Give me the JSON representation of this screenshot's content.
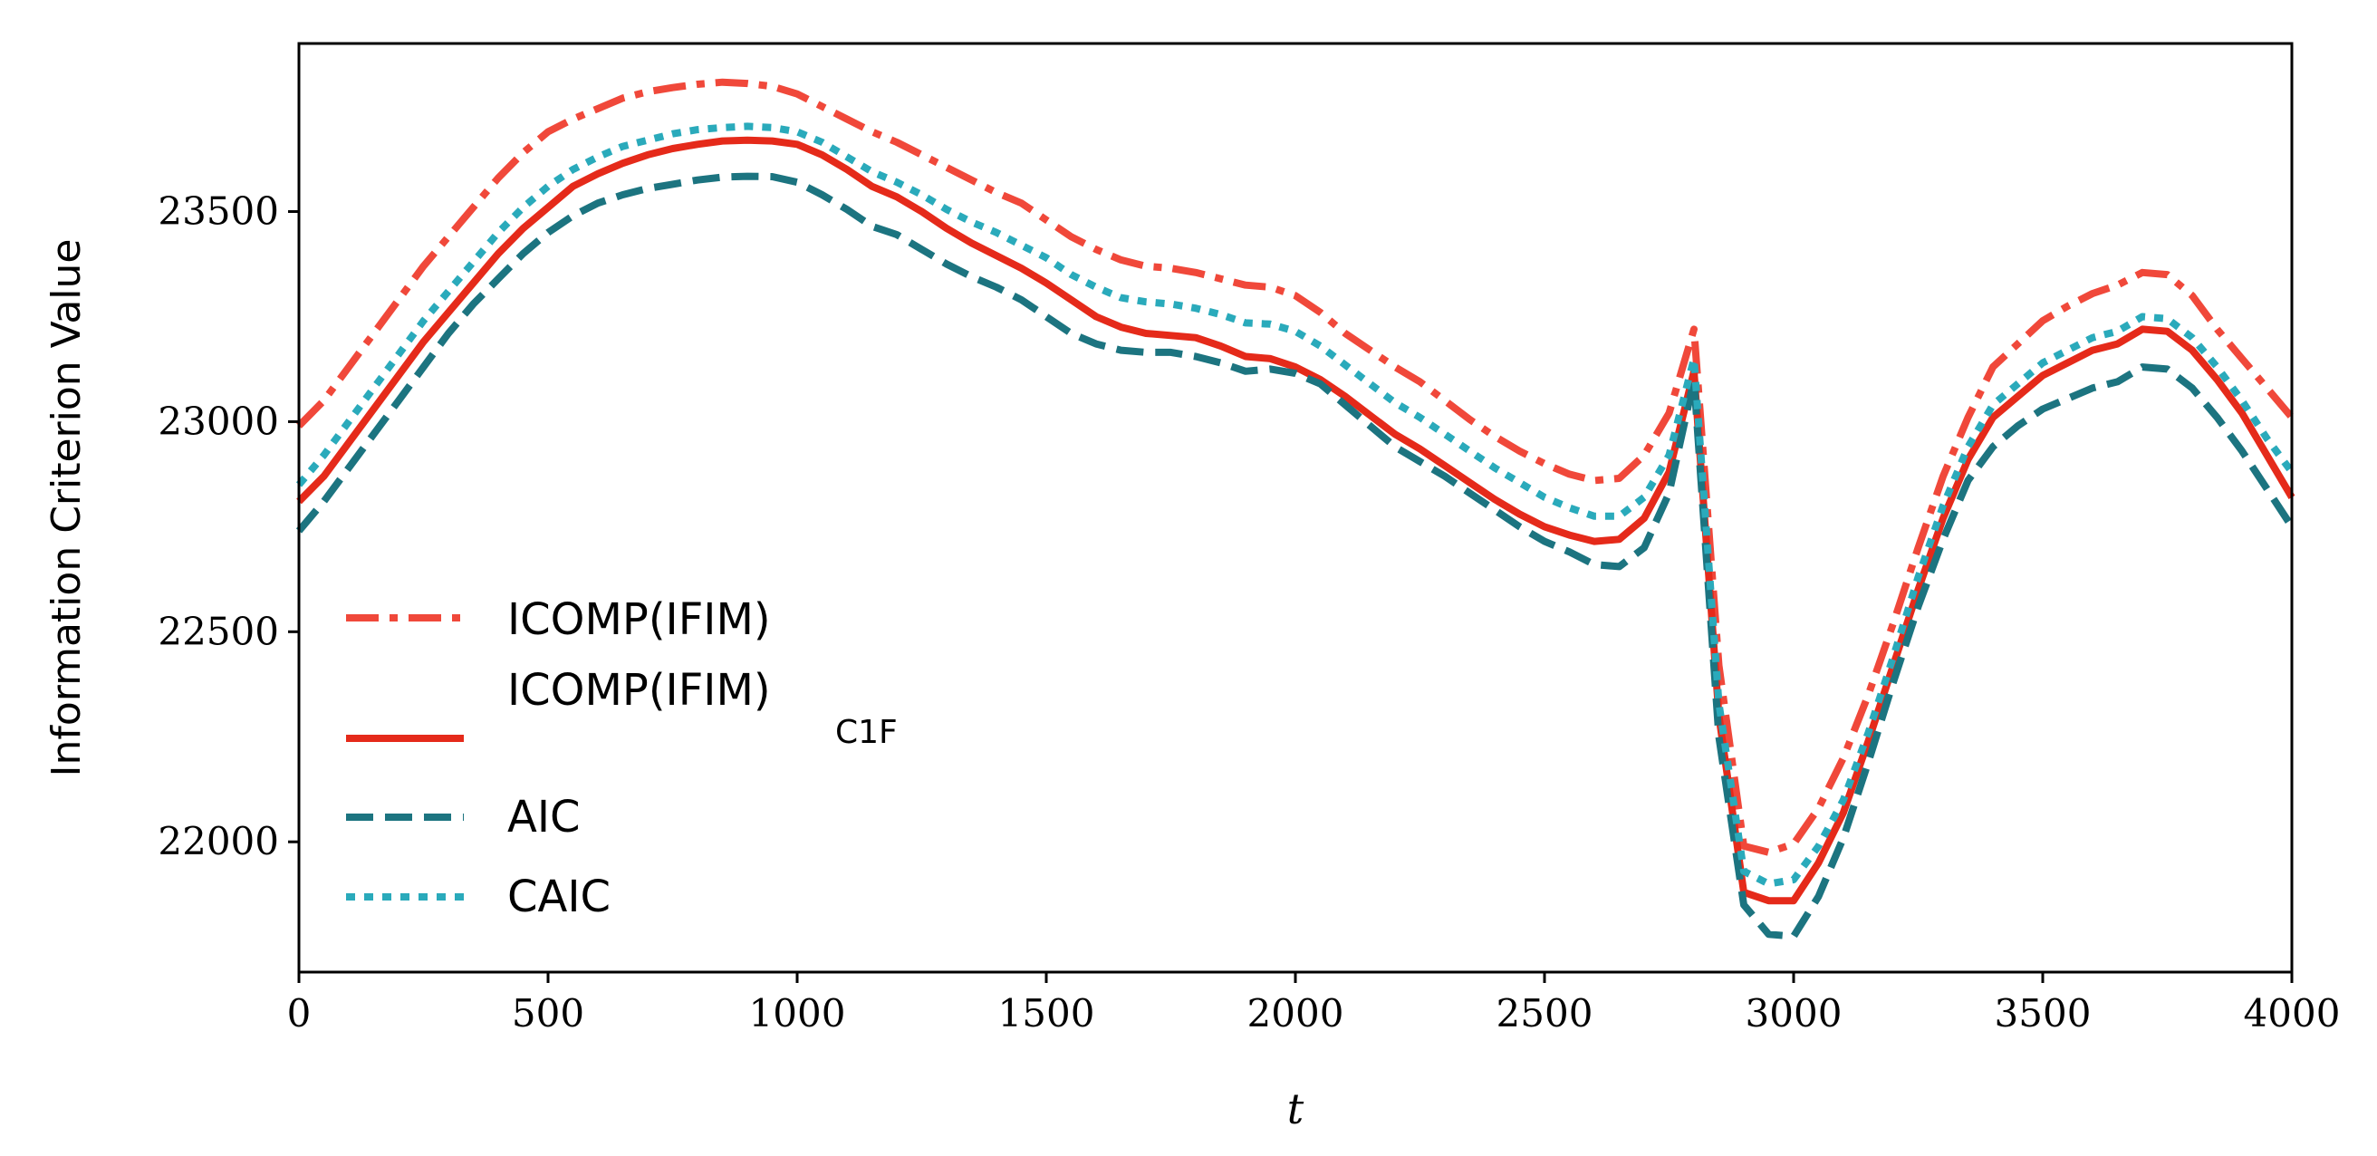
{
  "chart_data": {
    "type": "line",
    "title": "",
    "xlabel": "t",
    "ylabel": "Information Criterion Value",
    "xlim": [
      0,
      4000
    ],
    "ylim": [
      21690,
      23900
    ],
    "x_ticks": [
      0,
      500,
      1000,
      1500,
      2000,
      2500,
      3000,
      3500,
      4000
    ],
    "y_ticks": [
      22000,
      22500,
      23000,
      23500
    ],
    "grid": false,
    "legend_position": "left",
    "x": [
      0,
      50,
      100,
      150,
      200,
      250,
      300,
      350,
      400,
      450,
      500,
      550,
      600,
      650,
      700,
      750,
      800,
      850,
      900,
      950,
      1000,
      1050,
      1100,
      1150,
      1200,
      1250,
      1300,
      1350,
      1400,
      1450,
      1500,
      1550,
      1600,
      1650,
      1700,
      1750,
      1800,
      1850,
      1900,
      1950,
      2000,
      2050,
      2100,
      2150,
      2200,
      2250,
      2300,
      2350,
      2400,
      2450,
      2500,
      2550,
      2600,
      2650,
      2700,
      2750,
      2800,
      2850,
      2900,
      2950,
      3000,
      3050,
      3100,
      3150,
      3200,
      3250,
      3300,
      3350,
      3400,
      3450,
      3500,
      3550,
      3600,
      3650,
      3700,
      3750,
      3800,
      3850,
      3900,
      3950,
      4000
    ],
    "series": [
      {
        "name": "ICOMP(IFIM)",
        "color": "#f0483a",
        "dash": "dashdot",
        "values": [
          22990,
          23050,
          23130,
          23210,
          23290,
          23370,
          23440,
          23510,
          23580,
          23640,
          23690,
          23720,
          23745,
          23770,
          23785,
          23795,
          23803,
          23808,
          23805,
          23798,
          23780,
          23750,
          23720,
          23690,
          23665,
          23635,
          23605,
          23575,
          23545,
          23520,
          23480,
          23440,
          23410,
          23385,
          23370,
          23365,
          23355,
          23340,
          23325,
          23320,
          23300,
          23260,
          23210,
          23170,
          23130,
          23095,
          23050,
          23005,
          22965,
          22930,
          22900,
          22875,
          22860,
          22865,
          22920,
          23020,
          23220,
          22420,
          21990,
          21975,
          21995,
          22080,
          22200,
          22350,
          22520,
          22700,
          22870,
          23010,
          23130,
          23185,
          23240,
          23275,
          23305,
          23325,
          23355,
          23350,
          23300,
          23220,
          23150,
          23080,
          23010
        ]
      },
      {
        "name": "ICOMP(IFIM)",
        "subscript": "C1F",
        "color": "#e52a1a",
        "dash": "solid",
        "values": [
          22810,
          22870,
          22950,
          23030,
          23110,
          23190,
          23260,
          23330,
          23400,
          23460,
          23510,
          23560,
          23590,
          23615,
          23635,
          23650,
          23660,
          23668,
          23670,
          23668,
          23660,
          23635,
          23600,
          23560,
          23535,
          23500,
          23460,
          23425,
          23395,
          23365,
          23330,
          23290,
          23250,
          23225,
          23210,
          23205,
          23200,
          23180,
          23155,
          23150,
          23130,
          23100,
          23060,
          23015,
          22970,
          22935,
          22895,
          22855,
          22815,
          22780,
          22750,
          22730,
          22715,
          22720,
          22770,
          22880,
          23120,
          22300,
          21880,
          21860,
          21860,
          21950,
          22070,
          22240,
          22420,
          22600,
          22770,
          22910,
          23010,
          23060,
          23110,
          23140,
          23170,
          23185,
          23220,
          23215,
          23170,
          23100,
          23020,
          22920,
          22820
        ]
      },
      {
        "name": "AIC",
        "color": "#1c7480",
        "dash": "dashed",
        "values": [
          22740,
          22810,
          22890,
          22970,
          23050,
          23130,
          23210,
          23280,
          23340,
          23400,
          23450,
          23490,
          23520,
          23540,
          23555,
          23565,
          23575,
          23582,
          23584,
          23583,
          23570,
          23540,
          23505,
          23465,
          23445,
          23410,
          23375,
          23345,
          23320,
          23290,
          23250,
          23210,
          23185,
          23170,
          23165,
          23165,
          23155,
          23140,
          23120,
          23125,
          23115,
          23090,
          23040,
          22990,
          22940,
          22905,
          22870,
          22830,
          22790,
          22750,
          22715,
          22690,
          22660,
          22655,
          22700,
          22830,
          23100,
          22250,
          21850,
          21780,
          21775,
          21870,
          22010,
          22190,
          22380,
          22560,
          22720,
          22860,
          22940,
          22990,
          23030,
          23055,
          23080,
          23095,
          23130,
          23125,
          23080,
          23010,
          22930,
          22840,
          22750
        ]
      },
      {
        "name": "CAIC",
        "color": "#2aaabb",
        "dash": "dotted",
        "values": [
          22850,
          22920,
          23000,
          23080,
          23160,
          23240,
          23310,
          23380,
          23450,
          23510,
          23560,
          23600,
          23630,
          23655,
          23670,
          23685,
          23695,
          23700,
          23703,
          23700,
          23690,
          23665,
          23630,
          23595,
          23570,
          23540,
          23505,
          23475,
          23450,
          23420,
          23390,
          23350,
          23320,
          23295,
          23285,
          23280,
          23270,
          23255,
          23235,
          23232,
          23215,
          23180,
          23135,
          23090,
          23045,
          23010,
          22970,
          22930,
          22890,
          22855,
          22820,
          22795,
          22775,
          22775,
          22820,
          22920,
          23150,
          22330,
          21930,
          21900,
          21910,
          21990,
          22100,
          22260,
          22440,
          22630,
          22800,
          22940,
          23040,
          23090,
          23140,
          23170,
          23200,
          23215,
          23250,
          23245,
          23200,
          23130,
          23050,
          22960,
          22880
        ]
      }
    ]
  }
}
